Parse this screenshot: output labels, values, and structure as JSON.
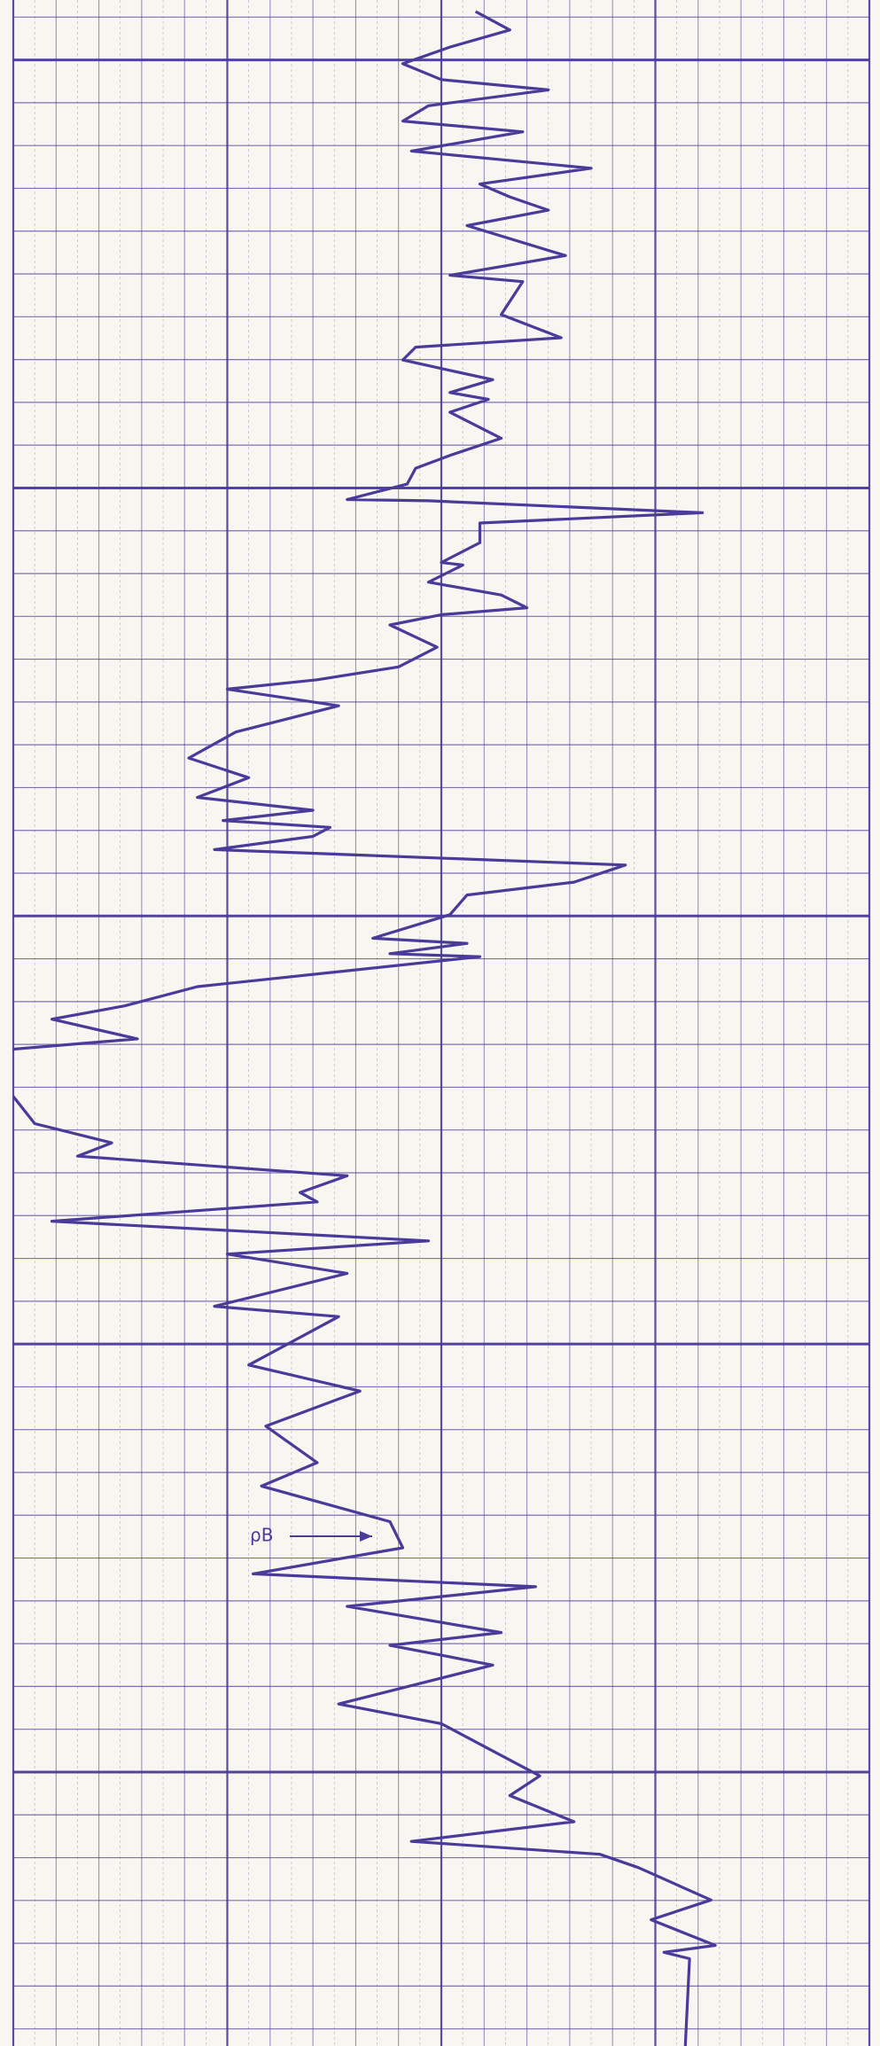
{
  "chart_data": {
    "type": "line",
    "annotations": [
      "ρB"
    ],
    "x": [
      -1.13,
      -0.7,
      -0.3,
      0.09,
      0.46,
      0.7,
      1.07,
      1.43,
      1.68,
      2.13,
      2.53,
      2.9,
      3.2,
      3.51,
      3.87,
      4.57,
      5.03,
      5.18,
      5.95,
      6.49,
      6.71,
      7.01,
      7.32,
      7.47,
      7.77,
      7.93,
      8.23,
      8.84,
      9.24,
      9.54,
      9.91,
      10.27,
      10.3,
      10.58,
      10.82,
      11.28,
      11.74,
      11.8,
      12.2,
      12.5,
      12.8,
      12.96,
      13.2,
      13.72,
      14.18,
      14.48,
      14.7,
      15.09,
      15.7,
      16.31,
      16.77,
      17.23,
      17.53,
      17.77,
      17.93,
      18.14,
      18.45,
      18.81,
      19.21,
      19.51,
      19.97,
      20.52,
      20.64,
      20.88,
      20.95,
      21.65,
      22.1,
      22.41,
      22.87,
      23.11,
      23.63,
      24.09,
      24.85,
      25.3,
      25.61,
      26.07,
      26.46,
      26.68,
      27.13,
      27.59,
      27.9,
      28.35,
      29.12,
      29.36,
      30.49,
      31.1,
      31.92,
      32.77,
      33.32,
      34.15,
      34.76,
      35.37,
      35.67,
      36.13,
      36.74,
      37.04,
      37.5,
      38.41,
      38.87,
      40.09,
      40.55,
      41.16,
      41.62,
      41.92,
      42.23,
      42.99,
      43.45,
      44.05,
      44.21,
      44.36,
      46.4
    ],
    "series": [
      {
        "color": "#4a3a9a",
        "values": [
          10.8,
          11.6,
          10.2,
          9.1,
          10.0,
          12.5,
          9.7,
          9.1,
          11.9,
          9.3,
          13.5,
          10.9,
          11.6,
          12.5,
          10.6,
          12.9,
          10.2,
          11.9,
          11.4,
          12.8,
          9.4,
          9.1,
          10.5,
          11.2,
          10.2,
          11.1,
          10.2,
          11.4,
          10.2,
          9.4,
          9.2,
          7.8,
          9.7,
          16.1,
          10.9,
          10.9,
          10.0,
          10.5,
          9.7,
          11.4,
          12.0,
          10.0,
          8.8,
          9.9,
          9.0,
          7.1,
          5.0,
          7.6,
          5.2,
          4.1,
          5.5,
          4.3,
          7.0,
          4.9,
          7.4,
          7.0,
          4.7,
          14.3,
          13.1,
          10.6,
          10.2,
          8.4,
          10.6,
          8.8,
          10.9,
          4.3,
          2.6,
          0.9,
          2.9,
          0.0,
          -0.3,
          -0.1,
          0.5,
          2.3,
          1.5,
          7.8,
          6.7,
          7.1,
          0.9,
          9.7,
          5.0,
          7.8,
          4.7,
          7.6,
          5.5,
          8.1,
          5.9,
          7.1,
          5.8,
          8.8,
          9.1,
          5.6,
          12.2,
          7.8,
          11.4,
          8.8,
          11.2,
          7.6,
          10.0,
          12.3,
          11.6,
          13.1,
          9.3,
          13.7,
          14.6,
          16.3,
          14.9,
          16.4,
          15.2,
          15.8,
          15.7
        ]
      }
    ],
    "xlim": [
      -1.4,
      46.4
    ],
    "ylim": [
      0,
      20
    ],
    "grid": true
  }
}
